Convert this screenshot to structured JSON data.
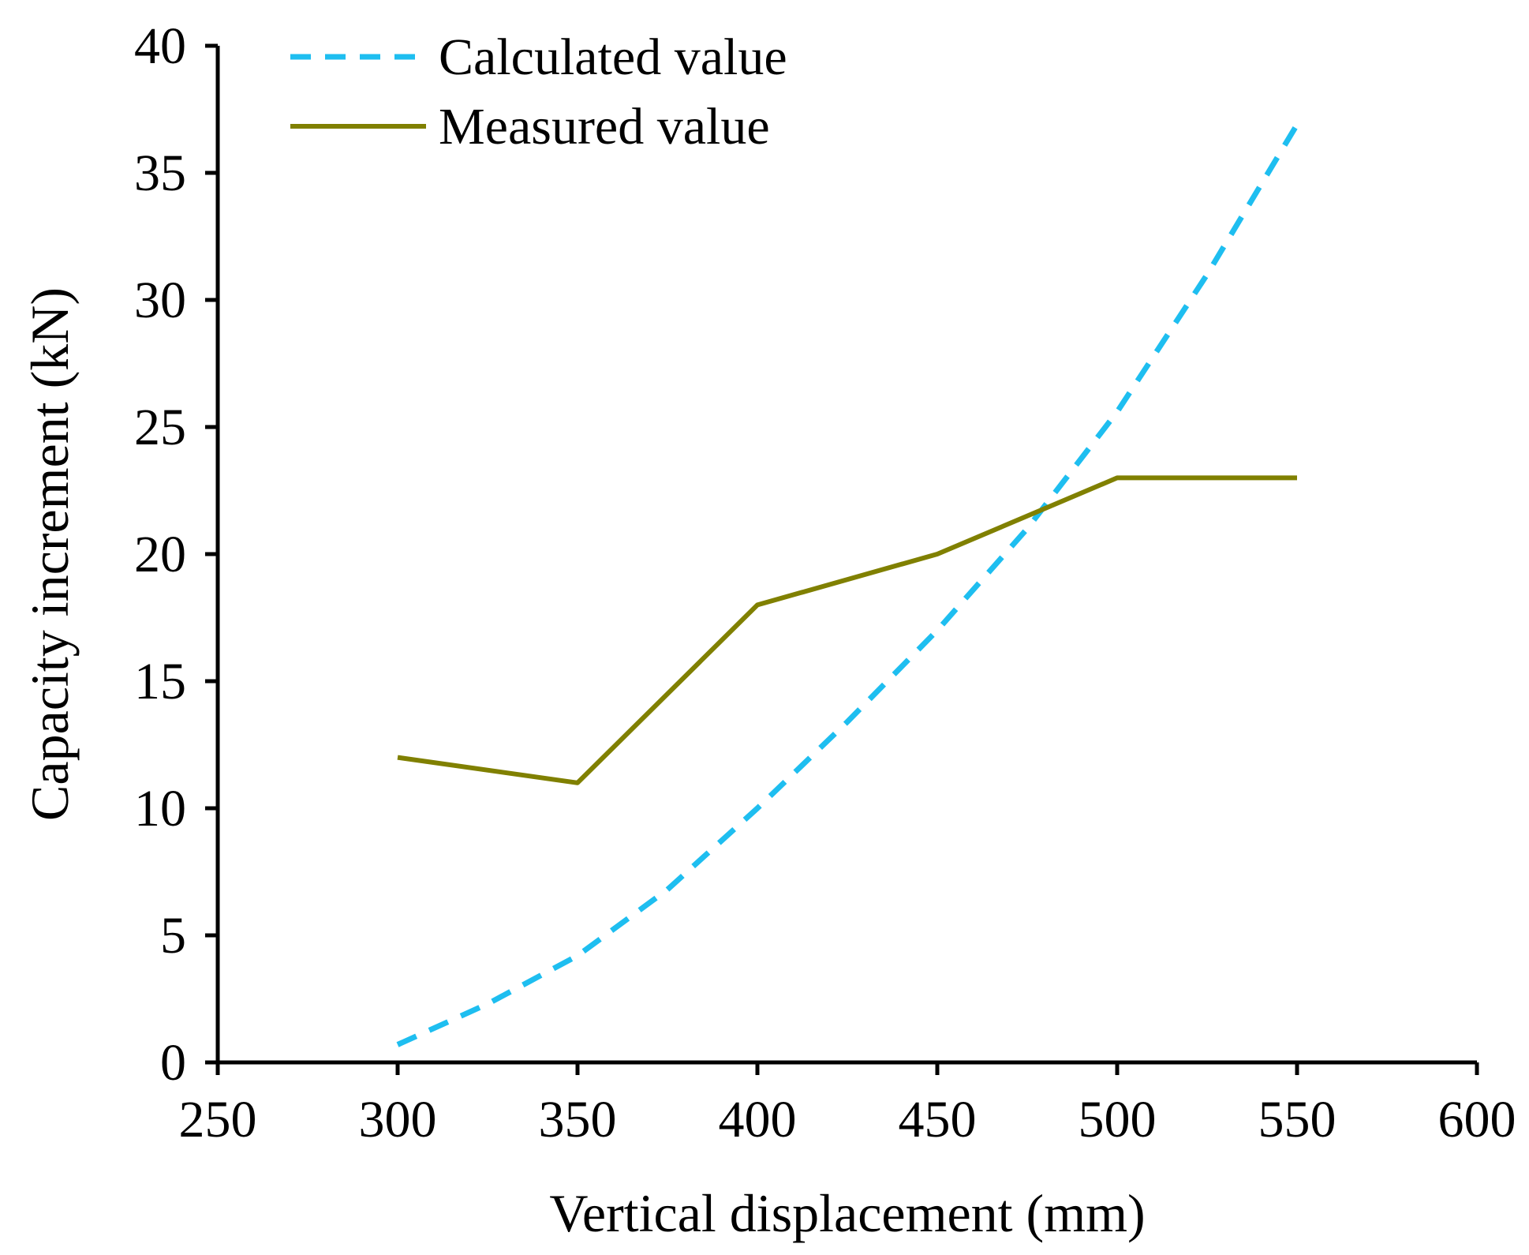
{
  "chart_data": {
    "type": "line",
    "title": "",
    "xlabel": "Vertical displacement (mm)",
    "ylabel": "Capacity increment (kN)",
    "xlim": [
      250,
      600
    ],
    "ylim": [
      0,
      40
    ],
    "xticks": [
      250,
      300,
      350,
      400,
      450,
      500,
      550,
      600
    ],
    "yticks": [
      0,
      5,
      10,
      15,
      20,
      25,
      30,
      35,
      40
    ],
    "grid": false,
    "legend_position": "top-left",
    "series": [
      {
        "name": "Calculated value",
        "style": "dashed",
        "color": "#1EBEF0",
        "x": [
          300,
          325,
          350,
          375,
          400,
          425,
          450,
          475,
          500,
          525,
          550
        ],
        "y": [
          0.7,
          2.3,
          4.2,
          6.8,
          10.0,
          13.4,
          17.0,
          21.0,
          25.6,
          31.0,
          36.9
        ]
      },
      {
        "name": "Measured value",
        "style": "solid",
        "color": "#808000",
        "x": [
          300,
          350,
          400,
          450,
          500,
          550
        ],
        "y": [
          12,
          11,
          18,
          20,
          23,
          23
        ]
      }
    ]
  }
}
